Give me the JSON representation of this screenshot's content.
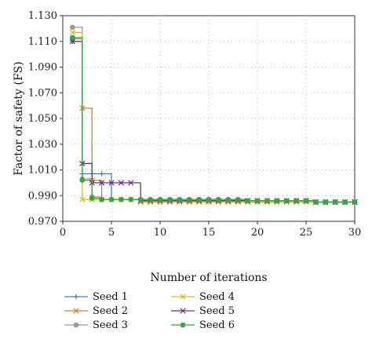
{
  "chart_data": {
    "type": "line",
    "xlabel": "Number of iterations",
    "ylabel": "Factor of safety (FS)",
    "xlim": [
      0,
      30
    ],
    "ylim": [
      0.97,
      1.13
    ],
    "x_ticks": [
      "0",
      "5",
      "10",
      "15",
      "20",
      "25",
      "30"
    ],
    "y_ticks": [
      "0.970",
      "0.990",
      "1.010",
      "1.030",
      "1.050",
      "1.070",
      "1.090",
      "1.110",
      "1.130"
    ],
    "grid": "dotted",
    "legend_position": "bottom",
    "series": [
      {
        "name": "Seed 1",
        "color": "#4a7fb5",
        "marker": "plus",
        "x": [
          1,
          2,
          3,
          4,
          5,
          6,
          7,
          8,
          9,
          10,
          11,
          12,
          13,
          14,
          15,
          16,
          17,
          18,
          19,
          20,
          21,
          22,
          23,
          24,
          25,
          26,
          27,
          28,
          29,
          30
        ],
        "y": [
          1.11,
          1.007,
          1.007,
          1.007,
          0.987,
          0.987,
          0.987,
          0.986,
          0.986,
          0.986,
          0.986,
          0.986,
          0.986,
          0.986,
          0.986,
          0.986,
          0.986,
          0.986,
          0.986,
          0.986,
          0.986,
          0.986,
          0.986,
          0.986,
          0.986,
          0.985,
          0.985,
          0.985,
          0.985,
          0.985
        ]
      },
      {
        "name": "Seed 2",
        "color": "#e07b39",
        "marker": "x",
        "x": [
          1,
          2,
          3,
          4,
          5,
          6,
          7,
          8,
          9,
          10,
          11,
          12,
          13,
          14,
          15,
          16,
          17,
          18,
          19,
          20,
          21,
          22,
          23,
          24,
          25,
          26,
          27,
          28,
          29,
          30
        ],
        "y": [
          1.112,
          1.058,
          1.002,
          0.987,
          0.987,
          0.987,
          0.987,
          0.985,
          0.985,
          0.985,
          0.985,
          0.985,
          0.985,
          0.985,
          0.985,
          0.985,
          0.985,
          0.985,
          0.985,
          0.985,
          0.985,
          0.985,
          0.985,
          0.985,
          0.985,
          0.985,
          0.985,
          0.985,
          0.985,
          0.985
        ]
      },
      {
        "name": "Seed 3",
        "color": "#9a9a9a",
        "marker": "circle",
        "x": [
          1,
          2,
          3,
          4,
          5,
          6,
          7,
          8,
          9,
          10,
          11,
          12,
          13,
          14,
          15,
          16,
          17,
          18,
          19,
          20,
          21,
          22,
          23,
          24,
          25,
          26,
          27,
          28,
          29,
          30
        ],
        "y": [
          1.121,
          1.003,
          0.989,
          0.987,
          0.987,
          0.987,
          0.987,
          0.987,
          0.987,
          0.987,
          0.987,
          0.987,
          0.987,
          0.987,
          0.987,
          0.987,
          0.987,
          0.987,
          0.986,
          0.986,
          0.986,
          0.986,
          0.986,
          0.986,
          0.986,
          0.985,
          0.985,
          0.985,
          0.985,
          0.985
        ]
      },
      {
        "name": "Seed 4",
        "color": "#d4c12a",
        "marker": "x",
        "x": [
          1,
          2,
          3,
          4,
          5,
          6,
          7,
          8,
          9,
          10,
          11,
          12,
          13,
          14,
          15,
          16,
          17,
          18,
          19,
          20,
          21,
          22,
          23,
          24,
          25,
          26,
          27,
          28,
          29,
          30
        ],
        "y": [
          1.117,
          0.987,
          0.987,
          0.987,
          0.987,
          0.987,
          0.987,
          0.985,
          0.985,
          0.985,
          0.985,
          0.985,
          0.985,
          0.985,
          0.985,
          0.985,
          0.985,
          0.985,
          0.985,
          0.985,
          0.985,
          0.985,
          0.985,
          0.985,
          0.985,
          0.985,
          0.985,
          0.985,
          0.985,
          0.985
        ]
      },
      {
        "name": "Seed 5",
        "color": "#5b3a78",
        "marker": "x",
        "x": [
          1,
          2,
          3,
          4,
          5,
          6,
          7,
          8,
          9,
          10,
          11,
          12,
          13,
          14,
          15,
          16,
          17,
          18,
          19,
          20,
          21,
          22,
          23,
          24,
          25,
          26,
          27,
          28,
          29,
          30
        ],
        "y": [
          1.11,
          1.015,
          1.0,
          1.0,
          1.0,
          1.0,
          1.0,
          0.986,
          0.986,
          0.986,
          0.986,
          0.986,
          0.986,
          0.986,
          0.986,
          0.986,
          0.986,
          0.986,
          0.986,
          0.986,
          0.986,
          0.986,
          0.986,
          0.986,
          0.986,
          0.985,
          0.985,
          0.985,
          0.985,
          0.985
        ]
      },
      {
        "name": "Seed 6",
        "color": "#3aa24a",
        "marker": "circle",
        "x": [
          1,
          2,
          3,
          4,
          5,
          6,
          7,
          8,
          9,
          10,
          11,
          12,
          13,
          14,
          15,
          16,
          17,
          18,
          19,
          20,
          21,
          22,
          23,
          24,
          25,
          26,
          27,
          28,
          29,
          30
        ],
        "y": [
          1.113,
          1.002,
          0.988,
          0.987,
          0.987,
          0.987,
          0.987,
          0.987,
          0.987,
          0.987,
          0.987,
          0.987,
          0.987,
          0.987,
          0.987,
          0.987,
          0.987,
          0.987,
          0.986,
          0.986,
          0.986,
          0.986,
          0.986,
          0.986,
          0.986,
          0.985,
          0.985,
          0.985,
          0.985,
          0.985
        ]
      }
    ]
  }
}
